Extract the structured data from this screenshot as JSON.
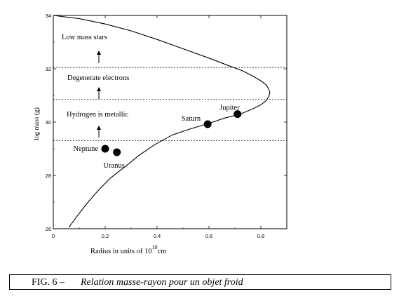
{
  "chart_data": {
    "type": "scatter",
    "xlabel": "Radius in units of 10",
    "xlabel_exp": "10",
    "xlabel_unit": "cm",
    "ylabel": "log mass (g)",
    "xlim": [
      0,
      0.9
    ],
    "ylim": [
      26,
      34
    ],
    "xticks": [
      0,
      0.2,
      0.4,
      0.6,
      0.8
    ],
    "yticks": [
      26,
      28,
      30,
      32,
      34
    ],
    "xtick_labels": [
      "0",
      "0.2",
      "0.4",
      "0.6",
      "0.8"
    ],
    "ytick_labels": [
      "26",
      "28",
      "30",
      "32",
      "34"
    ],
    "grid": false,
    "curve": {
      "x": [
        0.06,
        0.09,
        0.13,
        0.17,
        0.22,
        0.28,
        0.33,
        0.39,
        0.46,
        0.53,
        0.6,
        0.66,
        0.72,
        0.77,
        0.8,
        0.82,
        0.83,
        0.835,
        0.83,
        0.82,
        0.8,
        0.77,
        0.73,
        0.68,
        0.6,
        0.5,
        0.4,
        0.3,
        0.2,
        0.1,
        0.0
      ],
      "y": [
        26.05,
        26.45,
        26.95,
        27.4,
        27.9,
        28.35,
        28.75,
        29.15,
        29.52,
        29.75,
        29.95,
        30.15,
        30.3,
        30.5,
        30.65,
        30.8,
        30.95,
        31.1,
        31.25,
        31.4,
        31.55,
        31.72,
        31.92,
        32.1,
        32.4,
        32.75,
        33.1,
        33.42,
        33.68,
        33.88,
        34.0
      ]
    },
    "dashed_lines_y": [
      29.3,
      30.85,
      32.05
    ],
    "points": [
      {
        "label": "Neptune",
        "x": 0.2,
        "y": 29.0
      },
      {
        "label": "Uranus",
        "x": 0.245,
        "y": 28.87
      },
      {
        "label": "Saturn",
        "x": 0.595,
        "y": 29.92
      },
      {
        "label": "Jupiter",
        "x": 0.71,
        "y": 30.3
      }
    ],
    "annotations": [
      {
        "text": "Low mass stars"
      },
      {
        "text": "Degenerate electrons"
      },
      {
        "text": "Hydrogen is metallic"
      }
    ]
  },
  "caption": {
    "label": "FIG. 6 –",
    "text": "Relation masse-rayon pour un objet froid"
  }
}
